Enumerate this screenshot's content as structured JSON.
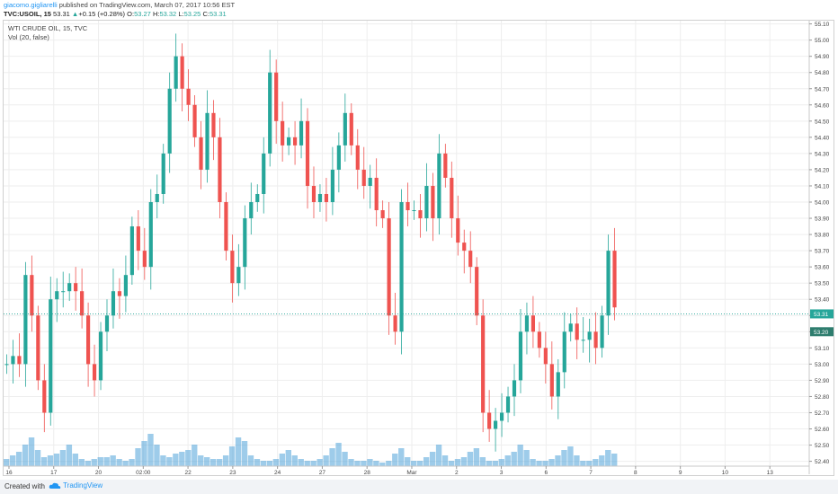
{
  "header": {
    "user": "giacomo.gigliarelli",
    "published": " published on TradingView.com, March 07, 2017 10:56 EST",
    "symbol": "TVC:USOIL, 15",
    "last": "53.31",
    "change": "+0.15 (+0.28%)",
    "o_label": "O:",
    "o_value": "53.27",
    "h_label": "H:",
    "h_value": "53.32",
    "l_label": "L:",
    "l_value": "53.25",
    "c_label": "C:",
    "c_value": "53.31"
  },
  "legend": {
    "title": "WTI CRUDE OIL, 15, TVC",
    "volume": "Vol (20, false)"
  },
  "footer": {
    "created": "Created with",
    "brand": "TradingView"
  },
  "colors": {
    "up": "#26a69a",
    "down": "#ef5350",
    "volume": "#4fa3d9",
    "grid": "#eeeeee",
    "axis_text": "#444444",
    "price_tag": "#26a69a"
  },
  "chart_data": {
    "type": "candlestick",
    "y_ticks": [
      "55.10",
      "55.00",
      "54.90",
      "54.80",
      "54.70",
      "54.60",
      "54.50",
      "54.40",
      "54.30",
      "54.20",
      "54.10",
      "54.00",
      "53.90",
      "53.80",
      "53.70",
      "53.60",
      "53.50",
      "53.40",
      "53.30",
      "53.20",
      "53.10",
      "53.00",
      "52.90",
      "52.80",
      "52.70",
      "52.60",
      "52.50",
      "52.40"
    ],
    "x_ticks": [
      "16",
      "17",
      "20",
      "02:00",
      "22",
      "23",
      "24",
      "27",
      "28",
      "Mar",
      "2",
      "3",
      "6",
      "7",
      "8",
      "9",
      "10",
      "13"
    ],
    "ylim": [
      52.37,
      55.12
    ],
    "last_price_tags": [
      "53.31",
      "53.20"
    ],
    "last_price": 53.31,
    "price_series": [
      53.0,
      53.05,
      53.0,
      53.55,
      53.3,
      52.9,
      52.7,
      53.4,
      53.45,
      53.45,
      53.5,
      53.45,
      53.3,
      53.0,
      52.9,
      53.2,
      53.3,
      53.45,
      53.42,
      53.55,
      53.85,
      53.7,
      53.6,
      54.0,
      54.05,
      54.3,
      54.7,
      54.9,
      54.7,
      54.6,
      54.4,
      54.2,
      54.55,
      54.4,
      54.0,
      53.7,
      53.5,
      53.6,
      53.9,
      54.0,
      54.05,
      54.3,
      54.8,
      54.5,
      54.35,
      54.4,
      54.35,
      54.5,
      54.1,
      54.0,
      54.05,
      54.0,
      54.2,
      54.35,
      54.55,
      54.35,
      54.2,
      54.1,
      54.15,
      53.95,
      53.9,
      53.3,
      53.2,
      54.0,
      53.95,
      53.95,
      53.9,
      54.1,
      53.9,
      54.3,
      54.15,
      53.9,
      53.75,
      53.7,
      53.6,
      53.3,
      52.7,
      52.6,
      52.65,
      52.7,
      52.8,
      52.9,
      53.2,
      53.3,
      53.2,
      53.1,
      53.0,
      52.8,
      52.95,
      53.2,
      53.25,
      53.15,
      53.15,
      53.2,
      53.1,
      53.3,
      53.7,
      53.35
    ],
    "volume_series": [
      4,
      6,
      8,
      12,
      16,
      9,
      5,
      6,
      7,
      9,
      12,
      7,
      4,
      3,
      4,
      5,
      5,
      6,
      4,
      3,
      4,
      10,
      14,
      18,
      12,
      6,
      5,
      7,
      8,
      9,
      12,
      6,
      5,
      4,
      4,
      6,
      11,
      16,
      14,
      6,
      4,
      3,
      3,
      4,
      7,
      9,
      6,
      4,
      3,
      3,
      4,
      6,
      10,
      13,
      8,
      4,
      3,
      3,
      4,
      3,
      2,
      3,
      7,
      10,
      5,
      3,
      3,
      5,
      8,
      12,
      6,
      3,
      4,
      5,
      8,
      10,
      5,
      3,
      3,
      4,
      6,
      8,
      12,
      9,
      4,
      3,
      3,
      4,
      6,
      9,
      11,
      6,
      3,
      3,
      4,
      6,
      9,
      7
    ]
  }
}
